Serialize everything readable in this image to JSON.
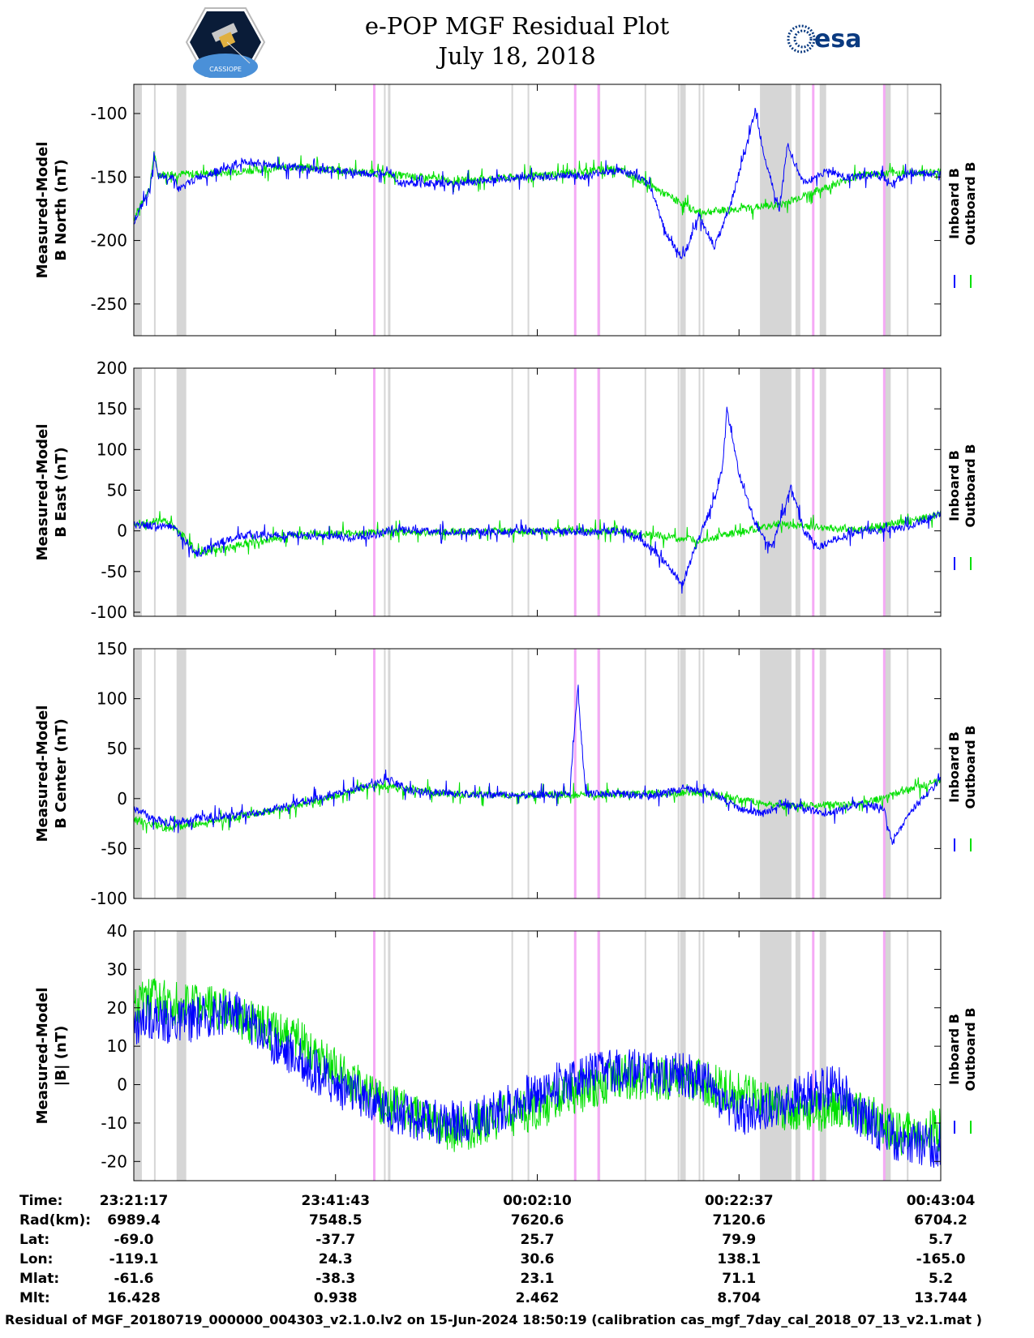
{
  "header": {
    "title": "e-POP MGF Residual Plot",
    "date": "July 18, 2018",
    "left_logo": "CASSIOPE",
    "right_logo": "esa"
  },
  "colors": {
    "inboard": "#0000ff",
    "outboard": "#00e000",
    "gap": "#d6d6d6",
    "magenta": "#f5aaf5"
  },
  "legend": {
    "inboard": "Inboard B",
    "outboard": "Outboard B"
  },
  "chart_data": [
    {
      "type": "line",
      "ylabel": [
        "Measured-Model",
        "B North (nT)"
      ],
      "ylim": [
        -275,
        -77
      ],
      "yticks": [
        -100,
        -150,
        -200,
        -250
      ],
      "series": [
        {
          "name": "Inboard B",
          "points": [
            [
              0,
              -185
            ],
            [
              0.02,
              -160
            ],
            [
              0.025,
              -133
            ],
            [
              0.03,
              -150
            ],
            [
              0.05,
              -150
            ],
            [
              0.055,
              -160
            ],
            [
              0.08,
              -150
            ],
            [
              0.14,
              -138
            ],
            [
              0.2,
              -143
            ],
            [
              0.25,
              -145
            ],
            [
              0.3,
              -148
            ],
            [
              0.315,
              -143
            ],
            [
              0.33,
              -155
            ],
            [
              0.4,
              -155
            ],
            [
              0.48,
              -150
            ],
            [
              0.52,
              -150
            ],
            [
              0.54,
              -148
            ],
            [
              0.56,
              -150
            ],
            [
              0.58,
              -146
            ],
            [
              0.6,
              -145
            ],
            [
              0.62,
              -148
            ],
            [
              0.64,
              -157
            ],
            [
              0.66,
              -195
            ],
            [
              0.68,
              -215
            ],
            [
              0.7,
              -180
            ],
            [
              0.72,
              -205
            ],
            [
              0.74,
              -170
            ],
            [
              0.76,
              -125
            ],
            [
              0.77,
              -97
            ],
            [
              0.78,
              -130
            ],
            [
              0.8,
              -175
            ],
            [
              0.81,
              -125
            ],
            [
              0.83,
              -155
            ],
            [
              0.86,
              -145
            ],
            [
              0.88,
              -150
            ],
            [
              0.9,
              -150
            ],
            [
              0.92,
              -148
            ],
            [
              0.94,
              -155
            ],
            [
              0.96,
              -147
            ],
            [
              1,
              -148
            ]
          ]
        },
        {
          "name": "Outboard B",
          "points": [
            [
              0,
              -183
            ],
            [
              0.02,
              -158
            ],
            [
              0.025,
              -131
            ],
            [
              0.03,
              -148
            ],
            [
              0.1,
              -147
            ],
            [
              0.2,
              -142
            ],
            [
              0.3,
              -147
            ],
            [
              0.4,
              -153
            ],
            [
              0.5,
              -149
            ],
            [
              0.6,
              -143
            ],
            [
              0.7,
              -178
            ],
            [
              0.8,
              -172
            ],
            [
              0.9,
              -148
            ],
            [
              1,
              -146
            ]
          ]
        }
      ]
    },
    {
      "type": "line",
      "ylabel": [
        "Measured-Model",
        "B East (nT)"
      ],
      "ylim": [
        -105,
        200
      ],
      "yticks": [
        200,
        150,
        100,
        50,
        0,
        -50,
        -100
      ],
      "series": [
        {
          "name": "Inboard B",
          "points": [
            [
              0,
              8
            ],
            [
              0.05,
              5
            ],
            [
              0.06,
              -10
            ],
            [
              0.08,
              -30
            ],
            [
              0.1,
              -15
            ],
            [
              0.14,
              -5
            ],
            [
              0.2,
              -5
            ],
            [
              0.26,
              -8
            ],
            [
              0.3,
              -5
            ],
            [
              0.32,
              2
            ],
            [
              0.4,
              -2
            ],
            [
              0.48,
              0
            ],
            [
              0.56,
              -2
            ],
            [
              0.6,
              0
            ],
            [
              0.62,
              -5
            ],
            [
              0.65,
              -30
            ],
            [
              0.68,
              -65
            ],
            [
              0.7,
              -10
            ],
            [
              0.72,
              40
            ],
            [
              0.73,
              80
            ],
            [
              0.735,
              150
            ],
            [
              0.75,
              70
            ],
            [
              0.77,
              10
            ],
            [
              0.79,
              -20
            ],
            [
              0.8,
              10
            ],
            [
              0.815,
              55
            ],
            [
              0.83,
              0
            ],
            [
              0.85,
              -20
            ],
            [
              0.87,
              -10
            ],
            [
              0.9,
              0
            ],
            [
              0.93,
              0
            ],
            [
              0.96,
              5
            ],
            [
              1,
              22
            ]
          ]
        },
        {
          "name": "Outboard B",
          "points": [
            [
              0,
              10
            ],
            [
              0.04,
              12
            ],
            [
              0.06,
              -5
            ],
            [
              0.08,
              -28
            ],
            [
              0.2,
              -4
            ],
            [
              0.4,
              -1
            ],
            [
              0.6,
              0
            ],
            [
              0.7,
              -12
            ],
            [
              0.8,
              8
            ],
            [
              0.9,
              1
            ],
            [
              1,
              20
            ]
          ]
        }
      ]
    },
    {
      "type": "line",
      "ylabel": [
        "Measured-Model",
        "B Center (nT)"
      ],
      "ylim": [
        -100,
        150
      ],
      "yticks": [
        150,
        100,
        50,
        0,
        -50,
        -100
      ],
      "series": [
        {
          "name": "Inboard B",
          "points": [
            [
              0,
              -10
            ],
            [
              0.04,
              -25
            ],
            [
              0.08,
              -20
            ],
            [
              0.15,
              -15
            ],
            [
              0.2,
              -5
            ],
            [
              0.25,
              5
            ],
            [
              0.3,
              15
            ],
            [
              0.32,
              18
            ],
            [
              0.34,
              8
            ],
            [
              0.4,
              5
            ],
            [
              0.48,
              3
            ],
            [
              0.54,
              5
            ],
            [
              0.55,
              110
            ],
            [
              0.56,
              5
            ],
            [
              0.58,
              5
            ],
            [
              0.6,
              5
            ],
            [
              0.64,
              2
            ],
            [
              0.68,
              10
            ],
            [
              0.72,
              5
            ],
            [
              0.75,
              -10
            ],
            [
              0.78,
              -15
            ],
            [
              0.8,
              -5
            ],
            [
              0.83,
              -10
            ],
            [
              0.86,
              -15
            ],
            [
              0.9,
              -5
            ],
            [
              0.93,
              -10
            ],
            [
              0.94,
              -45
            ],
            [
              0.96,
              -15
            ],
            [
              0.99,
              10
            ],
            [
              1,
              20
            ]
          ]
        },
        {
          "name": "Outboard B",
          "points": [
            [
              0,
              -20
            ],
            [
              0.04,
              -30
            ],
            [
              0.08,
              -25
            ],
            [
              0.2,
              -8
            ],
            [
              0.3,
              13
            ],
            [
              0.4,
              4
            ],
            [
              0.6,
              4
            ],
            [
              0.7,
              6
            ],
            [
              0.8,
              -7
            ],
            [
              0.9,
              -6
            ],
            [
              1,
              18
            ]
          ]
        }
      ]
    },
    {
      "type": "line",
      "ylabel": [
        "Measured-Model",
        "|B| (nT)"
      ],
      "ylim": [
        -25,
        40
      ],
      "yticks": [
        40,
        30,
        20,
        10,
        0,
        -10,
        -20
      ],
      "series": [
        {
          "name": "Inboard B",
          "points": [
            [
              0,
              15
            ],
            [
              0.02,
              18
            ],
            [
              0.05,
              16
            ],
            [
              0.1,
              18
            ],
            [
              0.13,
              19
            ],
            [
              0.18,
              10
            ],
            [
              0.25,
              0
            ],
            [
              0.3,
              -5
            ],
            [
              0.35,
              -9
            ],
            [
              0.4,
              -10
            ],
            [
              0.45,
              -7
            ],
            [
              0.5,
              -2
            ],
            [
              0.55,
              2
            ],
            [
              0.6,
              4
            ],
            [
              0.65,
              3
            ],
            [
              0.7,
              2
            ],
            [
              0.75,
              -8
            ],
            [
              0.8,
              -5
            ],
            [
              0.84,
              -2
            ],
            [
              0.87,
              0
            ],
            [
              0.9,
              -8
            ],
            [
              0.95,
              -15
            ],
            [
              1,
              -16
            ]
          ]
        },
        {
          "name": "Outboard B",
          "points": [
            [
              0,
              20
            ],
            [
              0.02,
              22
            ],
            [
              0.05,
              21
            ],
            [
              0.1,
              20
            ],
            [
              0.2,
              12
            ],
            [
              0.3,
              -4
            ],
            [
              0.4,
              -12
            ],
            [
              0.5,
              -6
            ],
            [
              0.6,
              2
            ],
            [
              0.7,
              1
            ],
            [
              0.8,
              -6
            ],
            [
              0.9,
              -7
            ],
            [
              0.95,
              -13
            ],
            [
              1,
              -12
            ]
          ]
        }
      ]
    }
  ],
  "gap_bands": [
    [
      0.0,
      0.01
    ],
    [
      0.025,
      0.027
    ],
    [
      0.053,
      0.065
    ],
    [
      0.315,
      0.318
    ],
    [
      0.31,
      0.312
    ],
    [
      0.468,
      0.47
    ],
    [
      0.488,
      0.49
    ],
    [
      0.576,
      0.578
    ],
    [
      0.633,
      0.635
    ],
    [
      0.674,
      0.676
    ],
    [
      0.677,
      0.684
    ],
    [
      0.7,
      0.702
    ],
    [
      0.705,
      0.707
    ],
    [
      0.776,
      0.815
    ],
    [
      0.82,
      0.826
    ],
    [
      0.85,
      0.858
    ],
    [
      0.93,
      0.938
    ],
    [
      0.958,
      0.96
    ]
  ],
  "magenta_bands": [
    0.298,
    0.547,
    0.576,
    0.842,
    0.93
  ],
  "time_table": {
    "labels": [
      "Time:",
      "Rad(km):",
      "Lat:",
      "Lon:",
      "Mlat:",
      "Mlt:"
    ],
    "columns": [
      [
        "23:21:17",
        "6989.4",
        "-69.0",
        "-119.1",
        "-61.6",
        "16.428"
      ],
      [
        "23:41:43",
        "7548.5",
        "-37.7",
        "24.3",
        "-38.3",
        "0.938"
      ],
      [
        "00:02:10",
        "7620.6",
        "25.7",
        "30.6",
        "23.1",
        "2.462"
      ],
      [
        "00:22:37",
        "7120.6",
        "79.9",
        "138.1",
        "71.1",
        "8.704"
      ],
      [
        "00:43:04",
        "6704.2",
        "5.7",
        "-165.0",
        "5.2",
        "13.744"
      ]
    ]
  },
  "footer": "Residual of MGF_20180719_000000_004303_v2.1.0.lv2 on 15-Jun-2024 18:50:19 (calibration cas_mgf_7day_cal_2018_07_13_v2.1.mat )"
}
